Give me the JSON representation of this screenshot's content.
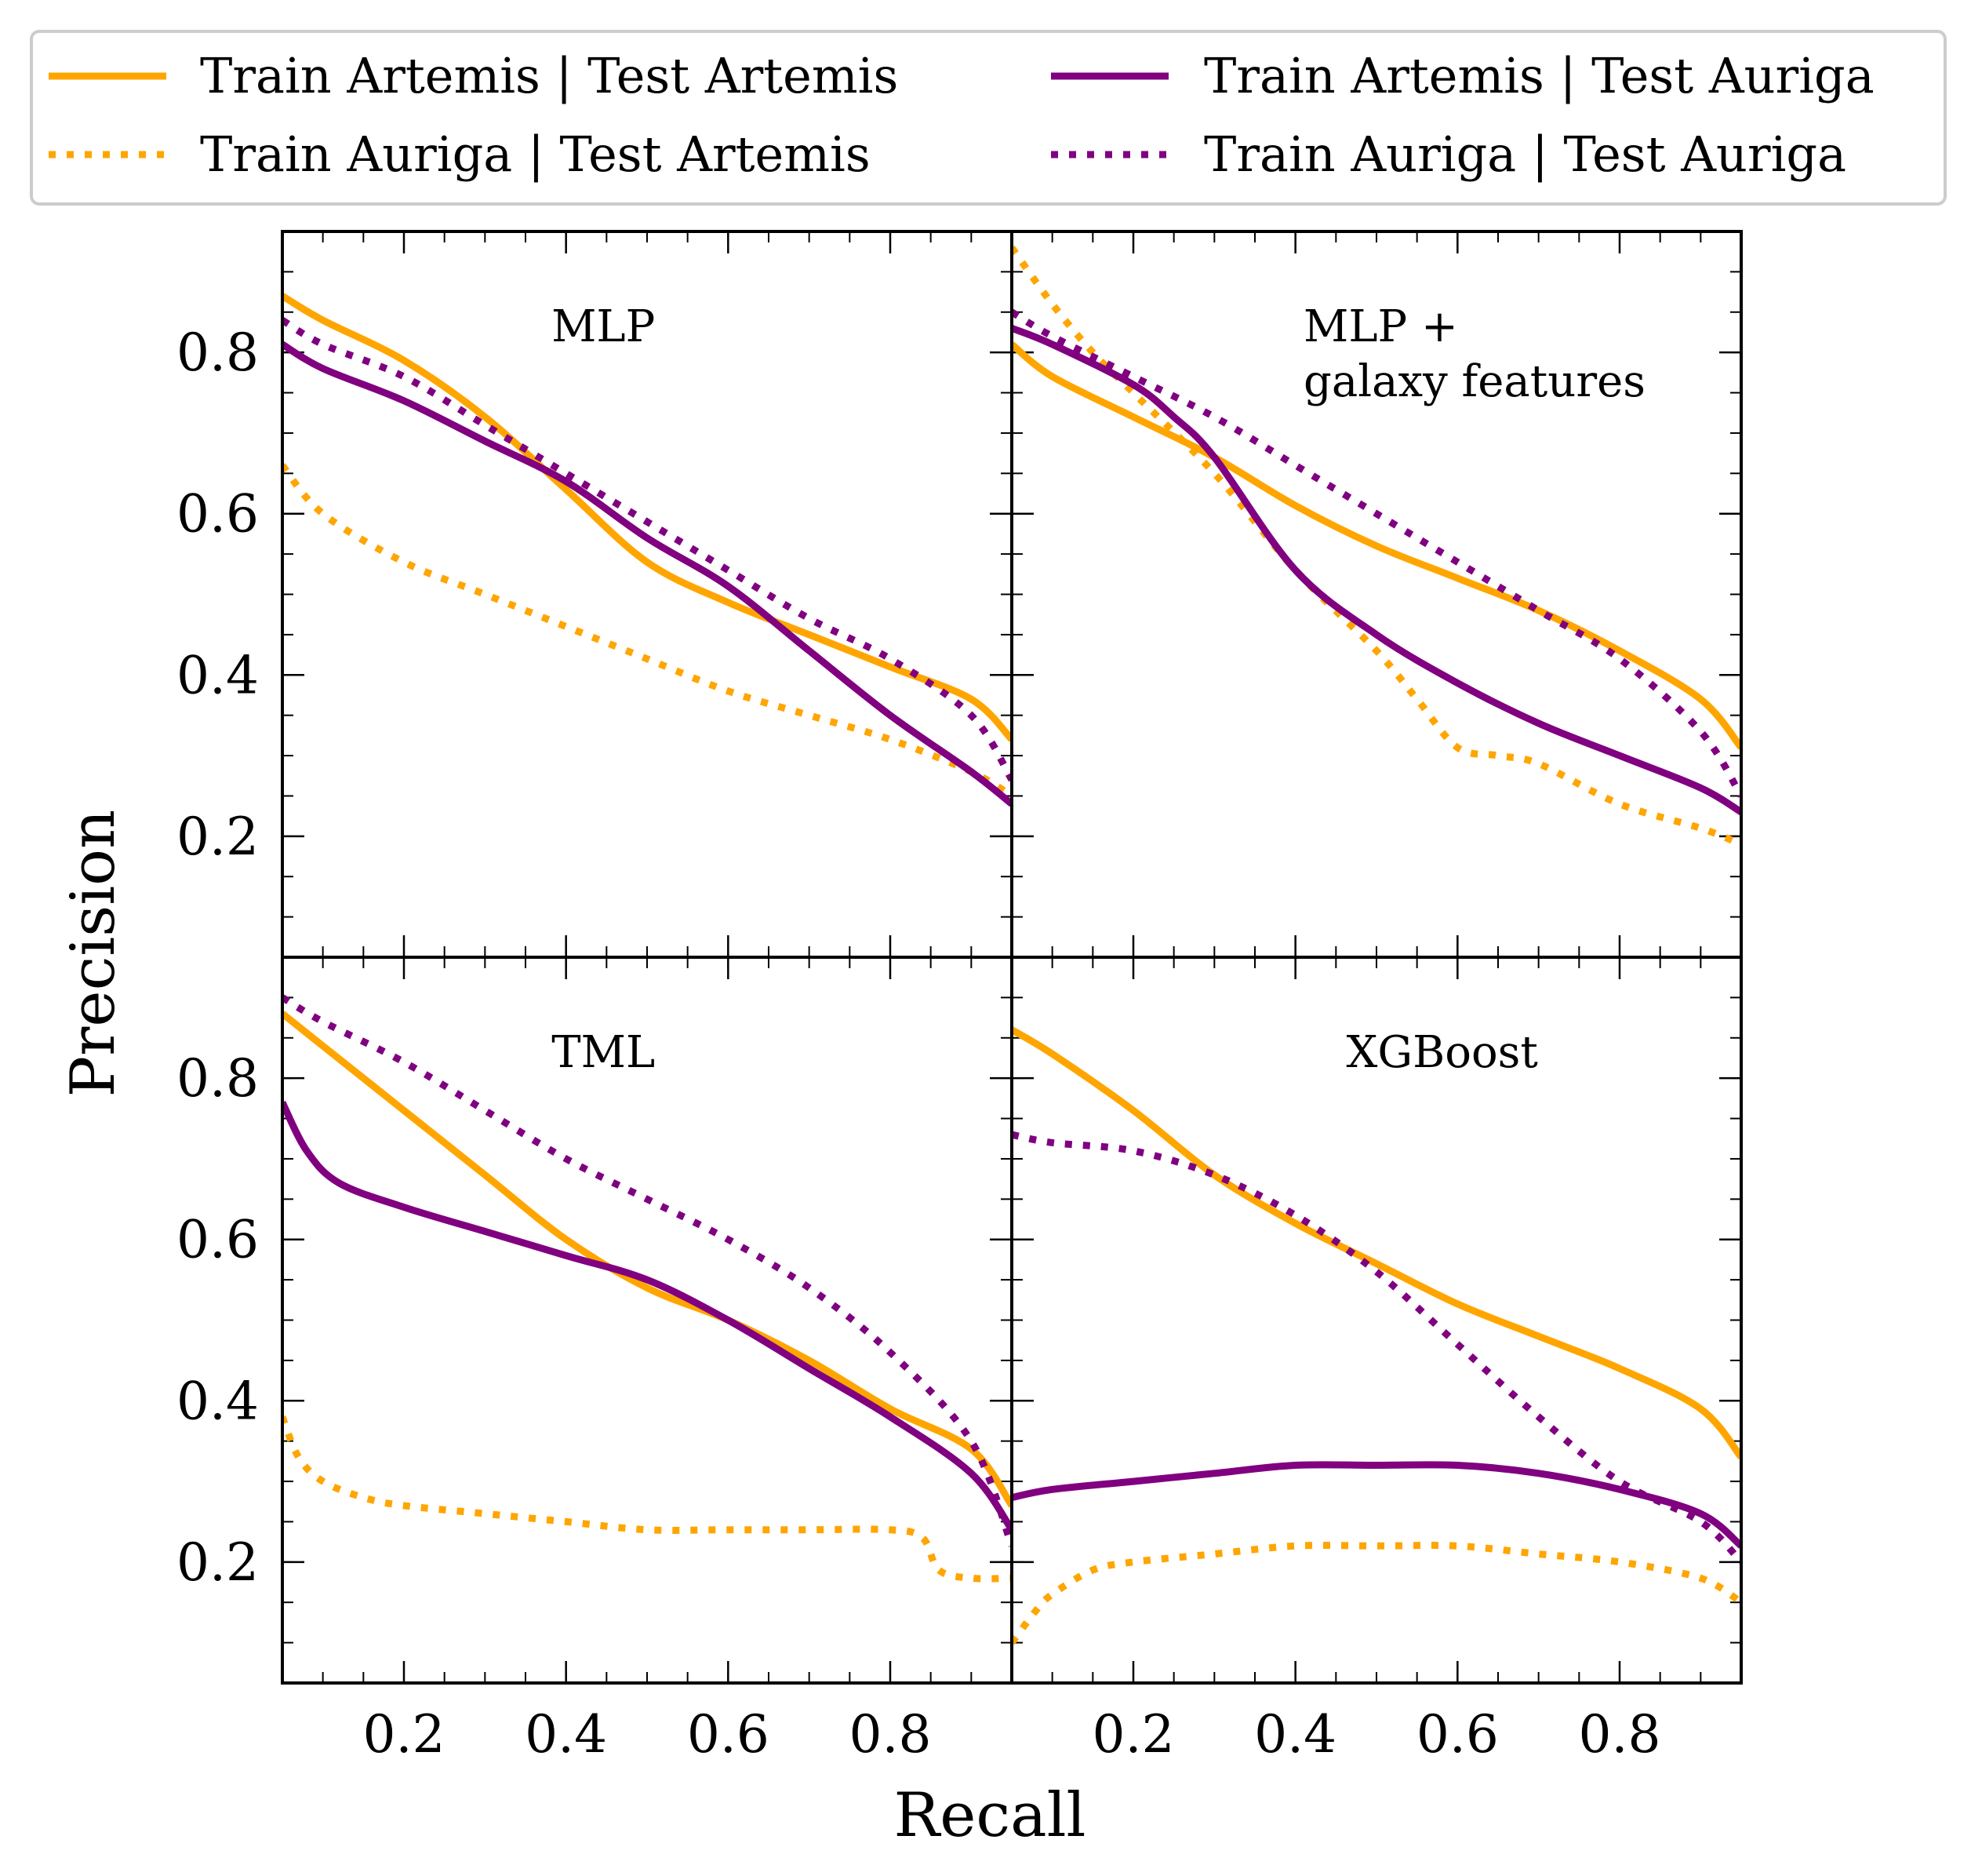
{
  "chart_data": {
    "type": "line",
    "xlabel": "Recall",
    "ylabel": "Precision",
    "xlim": [
      0.05,
      0.95
    ],
    "ylim": [
      0.05,
      0.95
    ],
    "xticks": [
      0.2,
      0.4,
      0.6,
      0.8
    ],
    "xtick_labels": [
      "0.2",
      "0.4",
      "0.6",
      "0.8"
    ],
    "yticks": [
      0.2,
      0.4,
      0.6,
      0.8
    ],
    "ytick_labels": [
      "0.2",
      "0.4",
      "0.6",
      "0.8"
    ],
    "minor_step": 0.05,
    "legend_placement": "top, outside, 2 columns",
    "legend": [
      {
        "label": "Train Artemis | Test Artemis",
        "color": "#FFA500",
        "style": "solid"
      },
      {
        "label": "Train Auriga | Test Artemis",
        "color": "#FFA500",
        "style": "dotted"
      },
      {
        "label": "Train Artemis | Test Auriga",
        "color": "#800080",
        "style": "solid"
      },
      {
        "label": "Train Auriga | Test Auriga",
        "color": "#800080",
        "style": "dotted"
      }
    ],
    "panels": [
      {
        "title": [
          "MLP"
        ],
        "series": [
          {
            "name": "Train Artemis | Test Artemis",
            "color": "#FFA500",
            "style": "solid",
            "x": [
              0.05,
              0.1,
              0.2,
              0.3,
              0.4,
              0.5,
              0.6,
              0.7,
              0.8,
              0.9,
              0.95
            ],
            "y": [
              0.87,
              0.84,
              0.79,
              0.72,
              0.63,
              0.54,
              0.49,
              0.45,
              0.41,
              0.37,
              0.32
            ]
          },
          {
            "name": "Train Auriga | Test Artemis",
            "color": "#FFA500",
            "style": "dotted",
            "x": [
              0.05,
              0.1,
              0.2,
              0.3,
              0.4,
              0.5,
              0.6,
              0.7,
              0.8,
              0.9,
              0.95
            ],
            "y": [
              0.66,
              0.6,
              0.54,
              0.5,
              0.46,
              0.42,
              0.38,
              0.35,
              0.32,
              0.28,
              0.25
            ]
          },
          {
            "name": "Train Artemis | Test Auriga",
            "color": "#800080",
            "style": "solid",
            "x": [
              0.05,
              0.1,
              0.2,
              0.3,
              0.4,
              0.5,
              0.6,
              0.7,
              0.8,
              0.9,
              0.95
            ],
            "y": [
              0.81,
              0.78,
              0.74,
              0.69,
              0.64,
              0.57,
              0.51,
              0.43,
              0.35,
              0.28,
              0.24
            ]
          },
          {
            "name": "Train Auriga | Test Auriga",
            "color": "#800080",
            "style": "dotted",
            "x": [
              0.05,
              0.1,
              0.2,
              0.3,
              0.4,
              0.5,
              0.6,
              0.7,
              0.8,
              0.9,
              0.95
            ],
            "y": [
              0.84,
              0.81,
              0.77,
              0.71,
              0.65,
              0.59,
              0.53,
              0.47,
              0.42,
              0.35,
              0.27
            ]
          }
        ]
      },
      {
        "title": [
          "MLP +",
          "galaxy features"
        ],
        "series": [
          {
            "name": "Train Artemis | Test Artemis",
            "color": "#FFA500",
            "style": "solid",
            "x": [
              0.05,
              0.1,
              0.2,
              0.3,
              0.4,
              0.5,
              0.6,
              0.7,
              0.8,
              0.9,
              0.95
            ],
            "y": [
              0.81,
              0.77,
              0.72,
              0.67,
              0.61,
              0.56,
              0.52,
              0.48,
              0.43,
              0.37,
              0.31
            ]
          },
          {
            "name": "Train Auriga | Test Artemis",
            "color": "#FFA500",
            "style": "dotted",
            "x": [
              0.05,
              0.1,
              0.15,
              0.2,
              0.3,
              0.4,
              0.5,
              0.55,
              0.6,
              0.65,
              0.7,
              0.8,
              0.9,
              0.95
            ],
            "y": [
              0.93,
              0.86,
              0.8,
              0.75,
              0.65,
              0.53,
              0.43,
              0.37,
              0.31,
              0.3,
              0.29,
              0.24,
              0.21,
              0.19
            ]
          },
          {
            "name": "Train Artemis | Test Auriga",
            "color": "#800080",
            "style": "solid",
            "x": [
              0.05,
              0.1,
              0.2,
              0.25,
              0.3,
              0.4,
              0.5,
              0.6,
              0.7,
              0.8,
              0.9,
              0.95
            ],
            "y": [
              0.83,
              0.81,
              0.76,
              0.72,
              0.67,
              0.53,
              0.45,
              0.39,
              0.34,
              0.3,
              0.26,
              0.23
            ]
          },
          {
            "name": "Train Auriga | Test Auriga",
            "color": "#800080",
            "style": "dotted",
            "x": [
              0.05,
              0.1,
              0.2,
              0.3,
              0.4,
              0.5,
              0.6,
              0.7,
              0.8,
              0.9,
              0.95
            ],
            "y": [
              0.85,
              0.82,
              0.77,
              0.72,
              0.66,
              0.6,
              0.54,
              0.48,
              0.42,
              0.33,
              0.25
            ]
          }
        ]
      },
      {
        "title": [
          "TML"
        ],
        "series": [
          {
            "name": "Train Artemis | Test Artemis",
            "color": "#FFA500",
            "style": "solid",
            "x": [
              0.05,
              0.1,
              0.2,
              0.3,
              0.4,
              0.5,
              0.6,
              0.7,
              0.8,
              0.9,
              0.95
            ],
            "y": [
              0.88,
              0.84,
              0.76,
              0.68,
              0.6,
              0.54,
              0.5,
              0.45,
              0.39,
              0.34,
              0.27
            ]
          },
          {
            "name": "Train Auriga | Test Artemis",
            "color": "#FFA500",
            "style": "dotted",
            "x": [
              0.05,
              0.07,
              0.1,
              0.15,
              0.2,
              0.3,
              0.4,
              0.5,
              0.6,
              0.7,
              0.8,
              0.84,
              0.86,
              0.9,
              0.95
            ],
            "y": [
              0.38,
              0.33,
              0.3,
              0.28,
              0.27,
              0.26,
              0.25,
              0.24,
              0.24,
              0.24,
              0.24,
              0.23,
              0.19,
              0.18,
              0.18
            ]
          },
          {
            "name": "Train Artemis | Test Auriga",
            "color": "#800080",
            "style": "solid",
            "x": [
              0.05,
              0.08,
              0.12,
              0.2,
              0.3,
              0.4,
              0.5,
              0.6,
              0.7,
              0.8,
              0.9,
              0.95
            ],
            "y": [
              0.77,
              0.71,
              0.67,
              0.64,
              0.61,
              0.58,
              0.55,
              0.5,
              0.44,
              0.38,
              0.31,
              0.24
            ]
          },
          {
            "name": "Train Auriga | Test Auriga",
            "color": "#800080",
            "style": "dotted",
            "x": [
              0.05,
              0.1,
              0.2,
              0.3,
              0.4,
              0.5,
              0.6,
              0.7,
              0.8,
              0.9,
              0.95
            ],
            "y": [
              0.9,
              0.87,
              0.82,
              0.76,
              0.7,
              0.65,
              0.6,
              0.54,
              0.46,
              0.35,
              0.22
            ]
          }
        ]
      },
      {
        "title": [
          "XGBoost"
        ],
        "series": [
          {
            "name": "Train Artemis | Test Artemis",
            "color": "#FFA500",
            "style": "solid",
            "x": [
              0.05,
              0.1,
              0.2,
              0.3,
              0.4,
              0.5,
              0.6,
              0.7,
              0.8,
              0.9,
              0.95
            ],
            "y": [
              0.86,
              0.83,
              0.76,
              0.68,
              0.62,
              0.57,
              0.52,
              0.48,
              0.44,
              0.39,
              0.33
            ]
          },
          {
            "name": "Train Auriga | Test Artemis",
            "color": "#FFA500",
            "style": "dotted",
            "x": [
              0.05,
              0.08,
              0.1,
              0.15,
              0.2,
              0.3,
              0.4,
              0.5,
              0.6,
              0.7,
              0.8,
              0.9,
              0.95
            ],
            "y": [
              0.1,
              0.14,
              0.16,
              0.19,
              0.2,
              0.21,
              0.22,
              0.22,
              0.22,
              0.21,
              0.2,
              0.18,
              0.15
            ]
          },
          {
            "name": "Train Artemis | Test Auriga",
            "color": "#800080",
            "style": "solid",
            "x": [
              0.05,
              0.1,
              0.2,
              0.3,
              0.4,
              0.5,
              0.6,
              0.7,
              0.8,
              0.9,
              0.95
            ],
            "y": [
              0.28,
              0.29,
              0.3,
              0.31,
              0.32,
              0.32,
              0.32,
              0.31,
              0.29,
              0.26,
              0.22
            ]
          },
          {
            "name": "Train Auriga | Test Auriga",
            "color": "#800080",
            "style": "dotted",
            "x": [
              0.05,
              0.1,
              0.2,
              0.3,
              0.4,
              0.5,
              0.6,
              0.7,
              0.8,
              0.9,
              0.95
            ],
            "y": [
              0.73,
              0.72,
              0.71,
              0.68,
              0.63,
              0.56,
              0.47,
              0.38,
              0.3,
              0.25,
              0.2
            ]
          }
        ]
      }
    ]
  }
}
